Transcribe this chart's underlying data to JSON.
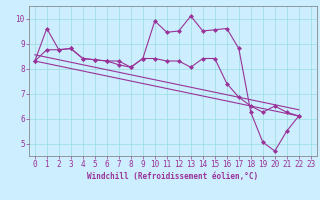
{
  "xlabel": "Windchill (Refroidissement éolien,°C)",
  "bg_color": "#cceeff",
  "grid_color": "#99dddd",
  "line_color": "#993399",
  "spine_color": "#777777",
  "xlim": [
    -0.5,
    23.5
  ],
  "ylim": [
    4.5,
    10.5
  ],
  "yticks": [
    5,
    6,
    7,
    8,
    9,
    10
  ],
  "xticks": [
    0,
    1,
    2,
    3,
    4,
    5,
    6,
    7,
    8,
    9,
    10,
    11,
    12,
    13,
    14,
    15,
    16,
    17,
    18,
    19,
    20,
    21,
    22,
    23
  ],
  "series1_x": [
    0,
    1,
    2,
    3,
    4,
    5,
    6,
    7,
    8,
    9,
    10,
    11,
    12,
    13,
    14,
    15,
    16,
    17,
    18,
    19,
    20,
    21,
    22
  ],
  "series1_y": [
    8.3,
    9.6,
    8.75,
    8.8,
    8.4,
    8.35,
    8.3,
    8.3,
    8.05,
    8.4,
    9.9,
    9.45,
    9.5,
    10.1,
    9.5,
    9.55,
    9.6,
    8.8,
    6.25,
    5.05,
    4.7,
    5.5,
    6.1
  ],
  "series2_x": [
    0,
    1,
    2,
    3,
    4,
    5,
    6,
    7,
    8,
    9,
    10,
    11,
    12,
    13,
    14,
    15,
    16,
    17,
    18,
    19,
    20,
    21,
    22
  ],
  "series2_y": [
    8.3,
    8.75,
    8.75,
    8.8,
    8.4,
    8.35,
    8.3,
    8.15,
    8.05,
    8.4,
    8.4,
    8.3,
    8.3,
    8.05,
    8.4,
    8.4,
    7.4,
    6.85,
    6.5,
    6.25,
    6.5,
    6.25,
    6.1
  ],
  "trend1_x": [
    0,
    22
  ],
  "trend1_y": [
    8.3,
    6.1
  ],
  "trend2_x": [
    0,
    22
  ],
  "trend2_y": [
    8.55,
    6.35
  ],
  "tick_fontsize": 5.5,
  "xlabel_fontsize": 5.5,
  "marker_size": 2.5,
  "linewidth": 0.8
}
